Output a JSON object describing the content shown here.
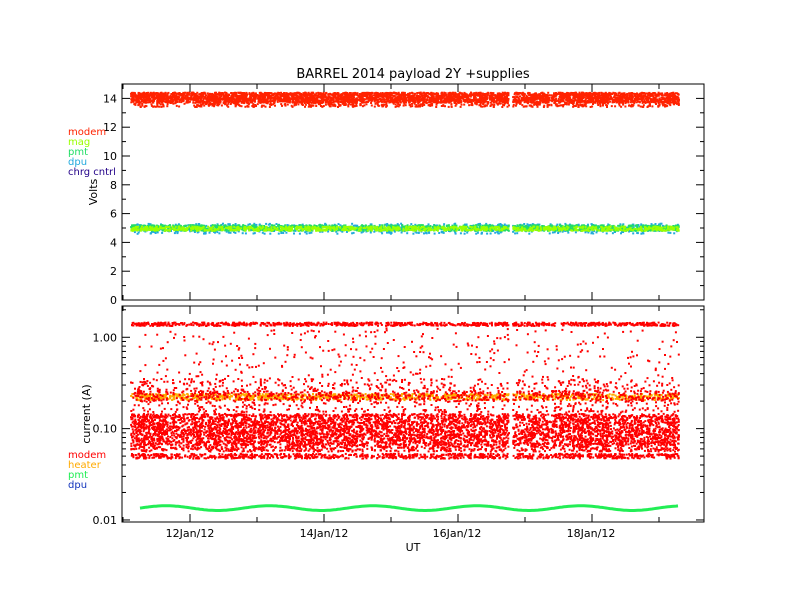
{
  "chart_data": [
    {
      "type": "scatter",
      "title": "BARREL 2014 payload 2Y +supplies",
      "ylabel": "Volts",
      "xlabel": "",
      "ylim": [
        0,
        15
      ],
      "yticks": [
        "0",
        "2",
        "4",
        "6",
        "8",
        "10",
        "12",
        "14"
      ],
      "legend_placement": "left",
      "series": [
        {
          "name": "modem",
          "color": "#ff2200",
          "values": [
            13.4,
            14.4
          ]
        },
        {
          "name": "mag",
          "color": "#9aff00",
          "values": [
            4.8,
            5.1
          ]
        },
        {
          "name": "pmt",
          "color": "#22dd66",
          "values": [
            4.8,
            5.2
          ]
        },
        {
          "name": "dpu",
          "color": "#22aadd",
          "values": [
            4.6,
            5.3
          ]
        },
        {
          "name": "chrg cntrl",
          "color": "#220088",
          "values": []
        }
      ]
    },
    {
      "type": "scatter",
      "title": "",
      "ylabel": "current (A)",
      "xlabel": "UT",
      "yscale": "log",
      "ylim": [
        0.0095,
        2.2
      ],
      "yticks": [
        "0.01",
        "0.10",
        "1.00"
      ],
      "xticks": [
        "12Jan/12",
        "14Jan/12",
        "16Jan/12",
        "18Jan/12"
      ],
      "legend_placement": "left",
      "series": [
        {
          "name": "modem",
          "color": "#ff0000",
          "values": [
            0.05,
            0.14,
            0.22,
            1.4
          ]
        },
        {
          "name": "heater",
          "color": "#ffaa00",
          "values": [
            0.22
          ]
        },
        {
          "name": "pmt",
          "color": "#22ee55",
          "values": [
            0.013,
            0.014
          ]
        },
        {
          "name": "dpu",
          "color": "#1133bb",
          "values": []
        }
      ]
    }
  ]
}
